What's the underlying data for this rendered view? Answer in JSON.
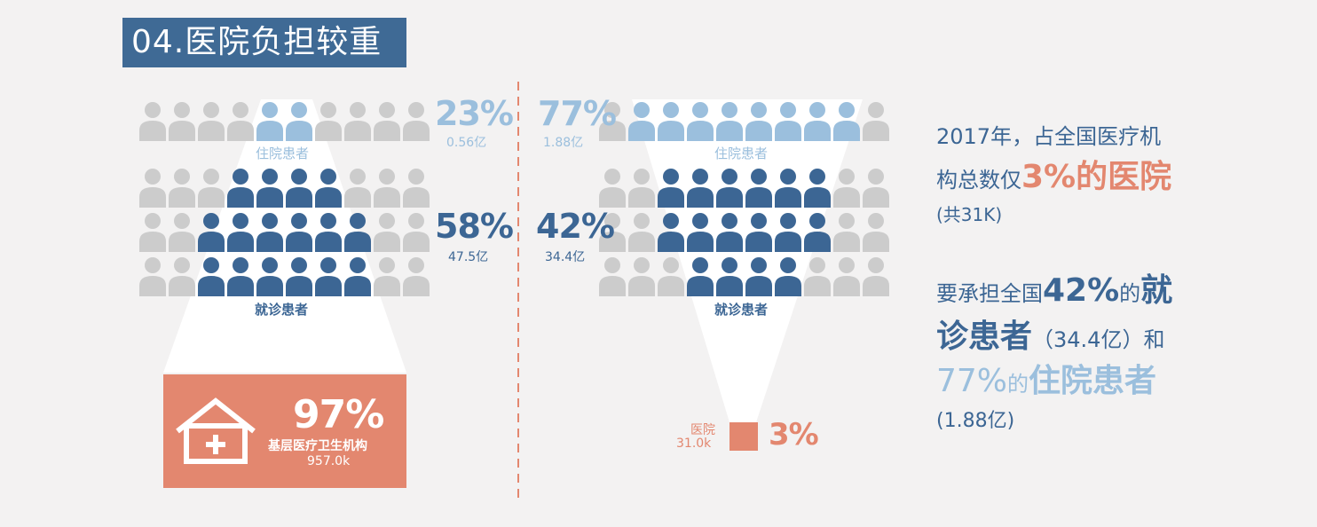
{
  "title": "04.医院负担较重",
  "left_panel": {
    "inpatient": {
      "pct": "23%",
      "amount": "0.56亿",
      "label": "住院患者"
    },
    "outpatient": {
      "pct": "58%",
      "amount": "47.5亿",
      "label": "就诊患者"
    },
    "facility": {
      "pct": "97%",
      "name": "基层医疗卫生机构",
      "count": "957.0k"
    }
  },
  "right_panel": {
    "inpatient": {
      "pct": "77%",
      "amount": "1.88亿",
      "label": "住院患者"
    },
    "outpatient": {
      "pct": "42%",
      "amount": "34.4亿",
      "label": "就诊患者"
    },
    "hospital": {
      "pct": "3%",
      "name": "医院",
      "count": "31.0k"
    }
  },
  "summary": {
    "l1": "2017年，占全国医疗机",
    "l2a": "构总数仅",
    "l2b": "3%的医院",
    "l3": "(共31K)",
    "l4a": "要承担全国",
    "l4b": "42%",
    "l4c": "的",
    "l4d": "就",
    "l5a": "诊患者",
    "l5b": "（34.4亿）",
    "l5c": "和",
    "l6a": "77%",
    "l6b": "的",
    "l6c": "住院患者",
    "l7": "(1.88亿)"
  },
  "colors": {
    "light_blue": "#9bbfdd",
    "dark_blue": "#3c6694",
    "coral": "#e3876f",
    "gray": "#cccccc",
    "bg": "#f3f2f2"
  },
  "icons": {
    "person": "person-icon",
    "hospital": "hospital-house-icon"
  }
}
